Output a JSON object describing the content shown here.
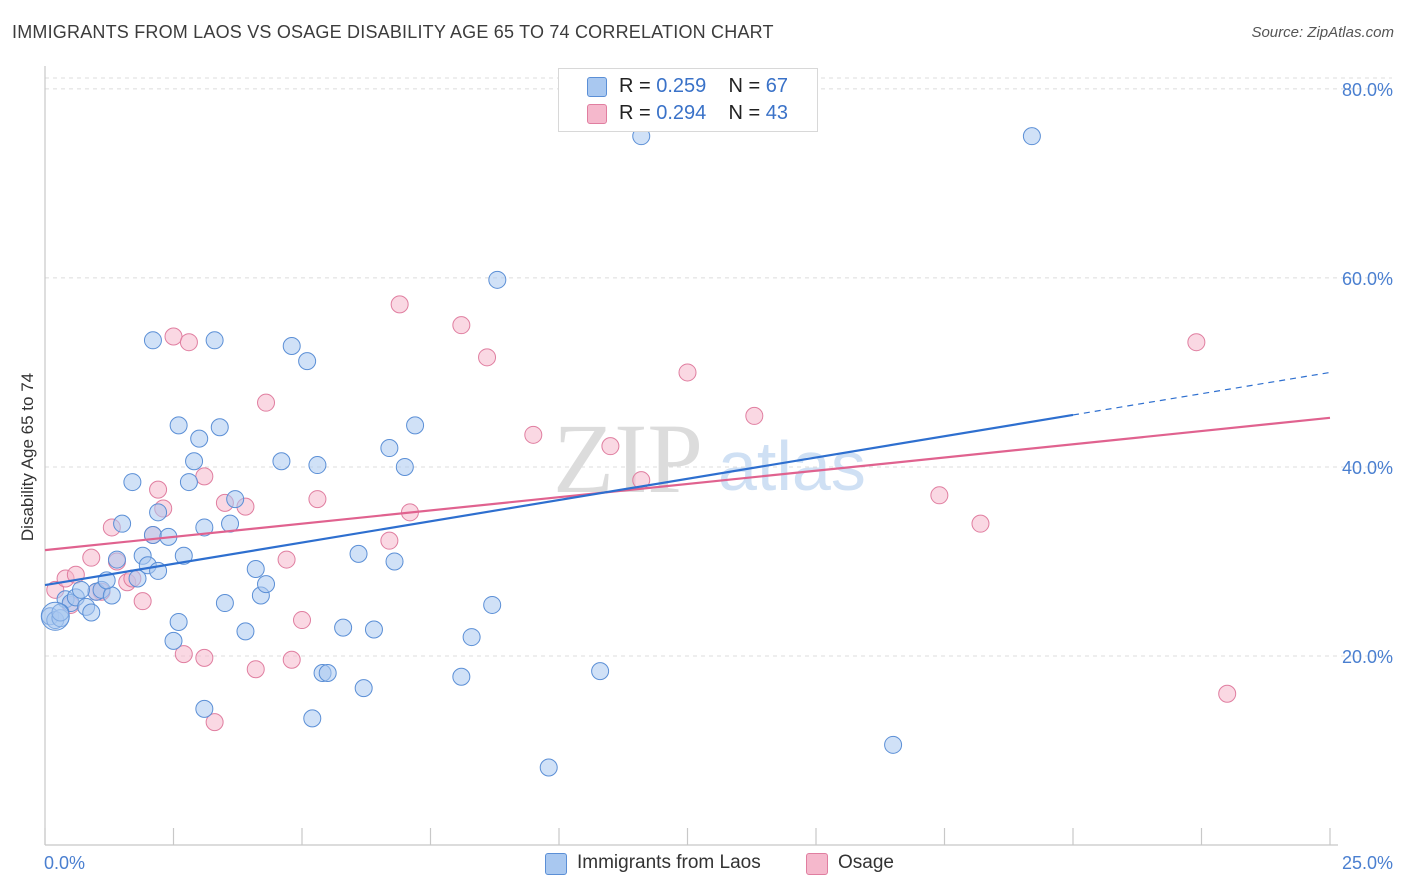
{
  "header": {
    "title": "IMMIGRANTS FROM LAOS VS OSAGE DISABILITY AGE 65 TO 74 CORRELATION CHART",
    "source": "Source: ZipAtlas.com"
  },
  "watermark": {
    "zip": "ZIP",
    "atlas": "atlas"
  },
  "legend": {
    "rows": [
      {
        "r_label": "R = ",
        "r_value": "0.259",
        "n_label": "N = ",
        "n_value": "67"
      },
      {
        "r_label": "R = ",
        "r_value": "0.294",
        "n_label": "N = ",
        "n_value": "43"
      }
    ]
  },
  "bottom_legend": {
    "series1": "Immigrants from Laos",
    "series2": "Osage"
  },
  "colors": {
    "blue_fill": "#a9c8f0",
    "blue_stroke": "#5b8fd6",
    "blue_line": "#2e6fcf",
    "pink_fill": "#f5b8cc",
    "pink_stroke": "#e07ea0",
    "pink_line": "#e0628f",
    "axis_text": "#4a7fd0",
    "grid": "#dcdcdc"
  },
  "chart_data": {
    "type": "scatter",
    "title": "IMMIGRANTS FROM LAOS VS OSAGE DISABILITY AGE 65 TO 74 CORRELATION CHART",
    "xlabel": "",
    "ylabel": "Disability Age 65 to 74",
    "xlim": [
      0,
      25
    ],
    "ylim": [
      0,
      82
    ],
    "x_tick_labels": [
      "0.0%",
      "25.0%"
    ],
    "y_ticks": [
      20,
      40,
      60,
      80
    ],
    "y_tick_labels": [
      "20.0%",
      "40.0%",
      "60.0%",
      "80.0%"
    ],
    "grid": true,
    "legend_position": "top-center",
    "series": [
      {
        "name": "Immigrants from Laos",
        "r": 0.259,
        "n": 67,
        "trend": {
          "x0": 0,
          "y0": 27.5,
          "x1": 20,
          "y1": 45.5,
          "dashed_to_x": 25,
          "dashed_to_y": 50.0
        },
        "points": [
          [
            0.1,
            24.2
          ],
          [
            0.2,
            23.8
          ],
          [
            0.3,
            24.0
          ],
          [
            0.4,
            26.0
          ],
          [
            0.5,
            25.6
          ],
          [
            0.6,
            26.2
          ],
          [
            0.8,
            25.2
          ],
          [
            0.9,
            24.6
          ],
          [
            1.0,
            26.8
          ],
          [
            1.1,
            27.0
          ],
          [
            1.3,
            26.4
          ],
          [
            1.4,
            30.2
          ],
          [
            1.5,
            34.0
          ],
          [
            1.7,
            38.4
          ],
          [
            1.8,
            28.2
          ],
          [
            1.9,
            30.6
          ],
          [
            2.0,
            29.6
          ],
          [
            2.1,
            32.8
          ],
          [
            2.2,
            29.0
          ],
          [
            2.2,
            35.2
          ],
          [
            2.4,
            32.6
          ],
          [
            2.5,
            21.6
          ],
          [
            2.6,
            23.6
          ],
          [
            2.6,
            44.4
          ],
          [
            2.7,
            30.6
          ],
          [
            2.8,
            38.4
          ],
          [
            2.9,
            40.6
          ],
          [
            3.0,
            43.0
          ],
          [
            3.1,
            33.6
          ],
          [
            3.1,
            14.4
          ],
          [
            3.4,
            44.2
          ],
          [
            3.5,
            25.6
          ],
          [
            3.6,
            34.0
          ],
          [
            3.7,
            36.6
          ],
          [
            3.9,
            22.6
          ],
          [
            4.1,
            29.2
          ],
          [
            4.2,
            26.4
          ],
          [
            4.3,
            27.6
          ],
          [
            4.6,
            40.6
          ],
          [
            4.8,
            52.8
          ],
          [
            5.1,
            51.2
          ],
          [
            5.2,
            13.4
          ],
          [
            5.3,
            40.2
          ],
          [
            5.4,
            18.2
          ],
          [
            5.5,
            18.2
          ],
          [
            5.8,
            23.0
          ],
          [
            6.1,
            30.8
          ],
          [
            6.2,
            16.6
          ],
          [
            6.4,
            22.8
          ],
          [
            6.7,
            42.0
          ],
          [
            6.8,
            30.0
          ],
          [
            7.0,
            40.0
          ],
          [
            7.2,
            44.4
          ],
          [
            8.1,
            17.8
          ],
          [
            8.3,
            22.0
          ],
          [
            8.7,
            25.4
          ],
          [
            8.8,
            59.8
          ],
          [
            9.8,
            8.2
          ],
          [
            10.8,
            18.4
          ],
          [
            11.6,
            75.0
          ],
          [
            16.5,
            10.6
          ],
          [
            19.2,
            75.0
          ],
          [
            2.1,
            53.4
          ],
          [
            3.3,
            53.4
          ],
          [
            1.2,
            28.0
          ],
          [
            0.7,
            27.0
          ],
          [
            0.3,
            24.6
          ]
        ]
      },
      {
        "name": "Osage",
        "r": 0.294,
        "n": 43,
        "trend": {
          "x0": 0,
          "y0": 31.2,
          "x1": 25,
          "y1": 45.2
        },
        "points": [
          [
            0.2,
            27.0
          ],
          [
            0.4,
            28.2
          ],
          [
            0.6,
            28.6
          ],
          [
            0.9,
            30.4
          ],
          [
            1.1,
            26.8
          ],
          [
            1.3,
            33.6
          ],
          [
            1.4,
            30.0
          ],
          [
            1.6,
            27.8
          ],
          [
            1.7,
            28.2
          ],
          [
            1.9,
            25.8
          ],
          [
            2.1,
            32.8
          ],
          [
            2.2,
            37.6
          ],
          [
            2.3,
            35.6
          ],
          [
            2.5,
            53.8
          ],
          [
            2.7,
            20.2
          ],
          [
            2.8,
            53.2
          ],
          [
            3.1,
            19.8
          ],
          [
            3.1,
            39.0
          ],
          [
            3.3,
            13.0
          ],
          [
            3.5,
            36.2
          ],
          [
            3.9,
            35.8
          ],
          [
            4.1,
            18.6
          ],
          [
            4.3,
            46.8
          ],
          [
            4.7,
            30.2
          ],
          [
            4.8,
            19.6
          ],
          [
            5.0,
            23.8
          ],
          [
            5.3,
            36.6
          ],
          [
            6.7,
            32.2
          ],
          [
            6.9,
            57.2
          ],
          [
            7.1,
            35.2
          ],
          [
            8.1,
            55.0
          ],
          [
            8.6,
            51.6
          ],
          [
            9.5,
            43.4
          ],
          [
            11.0,
            42.2
          ],
          [
            11.6,
            38.6
          ],
          [
            12.5,
            50.0
          ],
          [
            13.8,
            45.4
          ],
          [
            17.4,
            37.0
          ],
          [
            18.2,
            34.0
          ],
          [
            22.4,
            53.2
          ],
          [
            23.0,
            16.0
          ],
          [
            1.0,
            26.8
          ],
          [
            0.5,
            25.4
          ]
        ]
      }
    ]
  }
}
